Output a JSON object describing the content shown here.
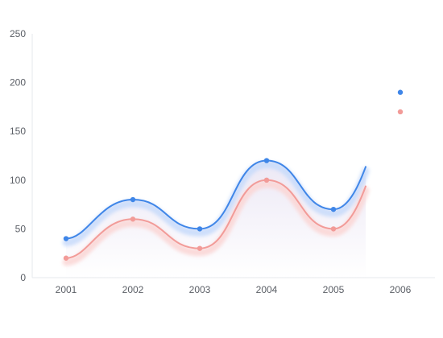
{
  "chart_data": {
    "type": "line",
    "title": "",
    "xlabel": "",
    "ylabel": "",
    "categories": [
      "2001",
      "2002",
      "2003",
      "2004",
      "2005",
      "2006"
    ],
    "ylim": [
      0,
      250
    ],
    "yticks": [
      0,
      50,
      100,
      150,
      200,
      250
    ],
    "grid": false,
    "series": [
      {
        "values": [
          40,
          80,
          50,
          120,
          70,
          190
        ],
        "color": "#3f86e8",
        "glow": "#c9dcfb"
      },
      {
        "values": [
          20,
          60,
          30,
          100,
          50,
          170
        ],
        "color": "#f29b98",
        "glow": "#fbd7d6"
      }
    ],
    "area_fill": {
      "top": "#ece8f5",
      "bottom": "#ffffff"
    }
  }
}
